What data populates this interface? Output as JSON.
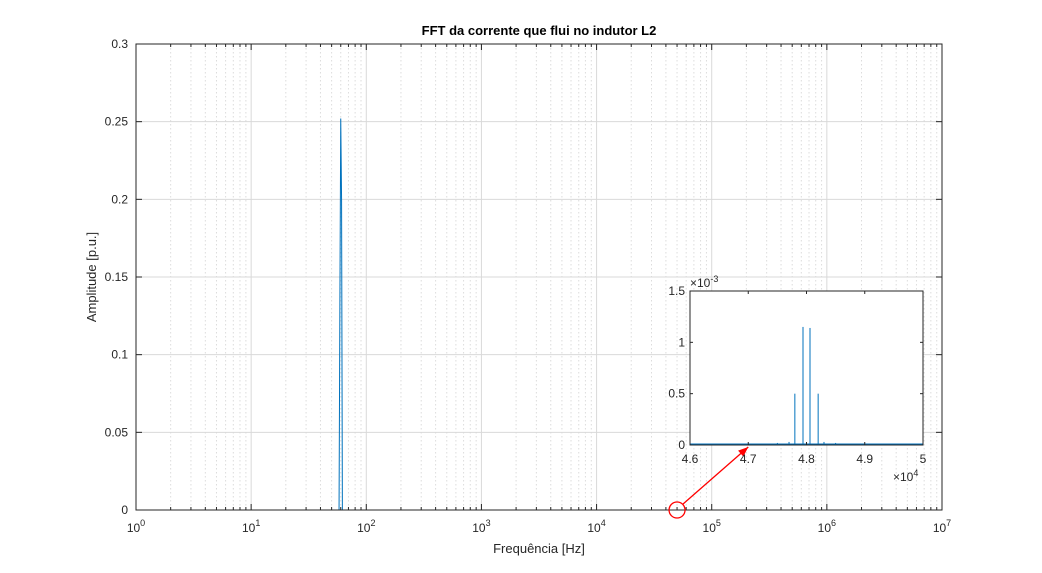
{
  "chart_data": [
    {
      "type": "line",
      "title": "FFT da corrente que flui no indutor L2",
      "xlabel": "Frequência [Hz]",
      "ylabel": "Amplitude [p.u.]",
      "xscale": "log",
      "xlim": [
        1,
        10000000
      ],
      "ylim": [
        0,
        0.3
      ],
      "x_ticks": [
        {
          "value": 1,
          "base": "10",
          "exp": "0"
        },
        {
          "value": 10,
          "base": "10",
          "exp": "1"
        },
        {
          "value": 100,
          "base": "10",
          "exp": "2"
        },
        {
          "value": 1000,
          "base": "10",
          "exp": "3"
        },
        {
          "value": 10000,
          "base": "10",
          "exp": "4"
        },
        {
          "value": 100000,
          "base": "10",
          "exp": "5"
        },
        {
          "value": 1000000,
          "base": "10",
          "exp": "6"
        },
        {
          "value": 10000000,
          "base": "10",
          "exp": "7"
        }
      ],
      "y_ticks": [
        {
          "value": 0,
          "label": "0"
        },
        {
          "value": 0.05,
          "label": "0.05"
        },
        {
          "value": 0.1,
          "label": "0.1"
        },
        {
          "value": 0.15,
          "label": "0.15"
        },
        {
          "value": 0.2,
          "label": "0.2"
        },
        {
          "value": 0.25,
          "label": "0.25"
        },
        {
          "value": 0.3,
          "label": "0.3"
        }
      ],
      "grid": true,
      "series": [
        {
          "color": "#0072bd",
          "peaks": [
            {
              "x": 58,
              "y": 0.0
            },
            {
              "x": 59,
              "y": 0.135
            },
            {
              "x": 60,
              "y": 0.252
            },
            {
              "x": 61,
              "y": 0.2
            },
            {
              "x": 62,
              "y": 0.0
            }
          ],
          "x_end": 2400000
        }
      ]
    },
    {
      "type": "line",
      "inset": true,
      "xlim": [
        46000,
        50000
      ],
      "ylim": [
        0,
        0.0015
      ],
      "x_multiplier": {
        "base": "10",
        "exp": "4"
      },
      "y_multiplier": {
        "base": "10",
        "exp": "-3"
      },
      "x_ticks": [
        {
          "value": 46000,
          "label": "4.6"
        },
        {
          "value": 47000,
          "label": "4.7"
        },
        {
          "value": 48000,
          "label": "4.8"
        },
        {
          "value": 49000,
          "label": "4.9"
        },
        {
          "value": 50000,
          "label": "5"
        }
      ],
      "y_ticks": [
        {
          "value": 0,
          "label": "0"
        },
        {
          "value": 0.0005,
          "label": "0.5"
        },
        {
          "value": 0.001,
          "label": "1"
        },
        {
          "value": 0.0015,
          "label": "1.5"
        }
      ],
      "series": [
        {
          "color": "#0072bd",
          "peaks": [
            {
              "x": 46500,
              "y": 1e-05
            },
            {
              "x": 47500,
              "y": 2e-05
            },
            {
              "x": 47700,
              "y": 3e-05
            },
            {
              "x": 47800,
              "y": 0.0005
            },
            {
              "x": 47940,
              "y": 0.00115
            },
            {
              "x": 48060,
              "y": 0.00114
            },
            {
              "x": 48200,
              "y": 0.0005
            },
            {
              "x": 48300,
              "y": 3e-05
            },
            {
              "x": 48500,
              "y": 2e-05
            },
            {
              "x": 49500,
              "y": 1e-05
            }
          ]
        }
      ]
    }
  ],
  "annotation": {
    "color": "#ff0000",
    "circle_at": {
      "x": 50000,
      "y": 0
    }
  }
}
